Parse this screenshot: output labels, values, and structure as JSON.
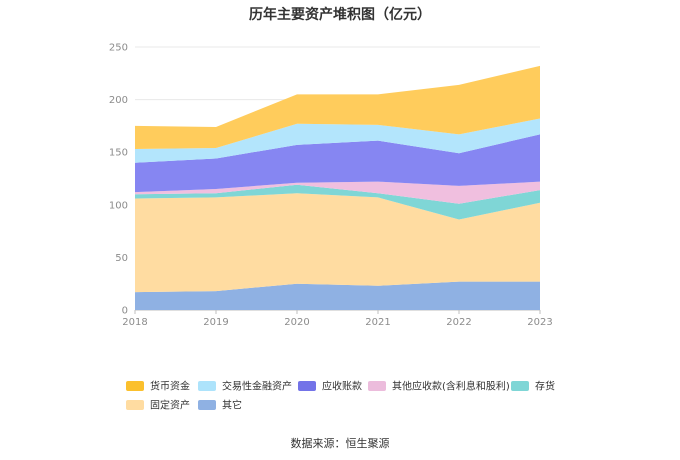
{
  "chart_data": {
    "type": "area",
    "stacked": true,
    "title": "历年主要资产堆积图（亿元）",
    "x": [
      "2018",
      "2019",
      "2020",
      "2021",
      "2022",
      "2023"
    ],
    "y_ticks": [
      "0",
      "50",
      "100",
      "150",
      "200",
      "250"
    ],
    "ylim": [
      0,
      250
    ],
    "grid": true,
    "legend_position": "bottom",
    "series": [
      {
        "name": "其它",
        "color": "#8fb1e3",
        "values": [
          17,
          18,
          25,
          23,
          27,
          27
        ]
      },
      {
        "name": "固定资产",
        "color": "#ffdca1",
        "values": [
          89,
          89,
          86,
          84,
          59,
          75
        ]
      },
      {
        "name": "存货",
        "color": "#7fd6d6",
        "values": [
          4,
          4,
          8,
          4,
          15,
          12
        ]
      },
      {
        "name": "其他应收款(含利息和股利)",
        "color": "#f0bfdf",
        "values": [
          2,
          4,
          2,
          11,
          17,
          8
        ]
      },
      {
        "name": "应收账款",
        "color": "#8686f2",
        "values": [
          28,
          29,
          36,
          39,
          31,
          45
        ]
      },
      {
        "name": "交易性金融资产",
        "color": "#b3e5fc",
        "values": [
          13,
          10,
          20,
          15,
          18,
          15
        ]
      },
      {
        "name": "货币资金",
        "color": "#ffcc5c",
        "values": [
          22,
          20,
          28,
          29,
          47,
          50
        ]
      }
    ],
    "legend_order": [
      "货币资金",
      "交易性金融资产",
      "应收账款",
      "其他应收款(含利息和股利)",
      "存货",
      "固定资产",
      "其它"
    ],
    "legend_colors": {
      "货币资金": "#fbc02d",
      "交易性金融资产": "#ade3fb",
      "应收账款": "#7373e8",
      "其他应收款(含利息和股利)": "#ecbcdc",
      "存货": "#7fd6d6",
      "固定资产": "#ffdca1",
      "其它": "#8fb1e3"
    }
  },
  "source": "数据来源：恒生聚源"
}
